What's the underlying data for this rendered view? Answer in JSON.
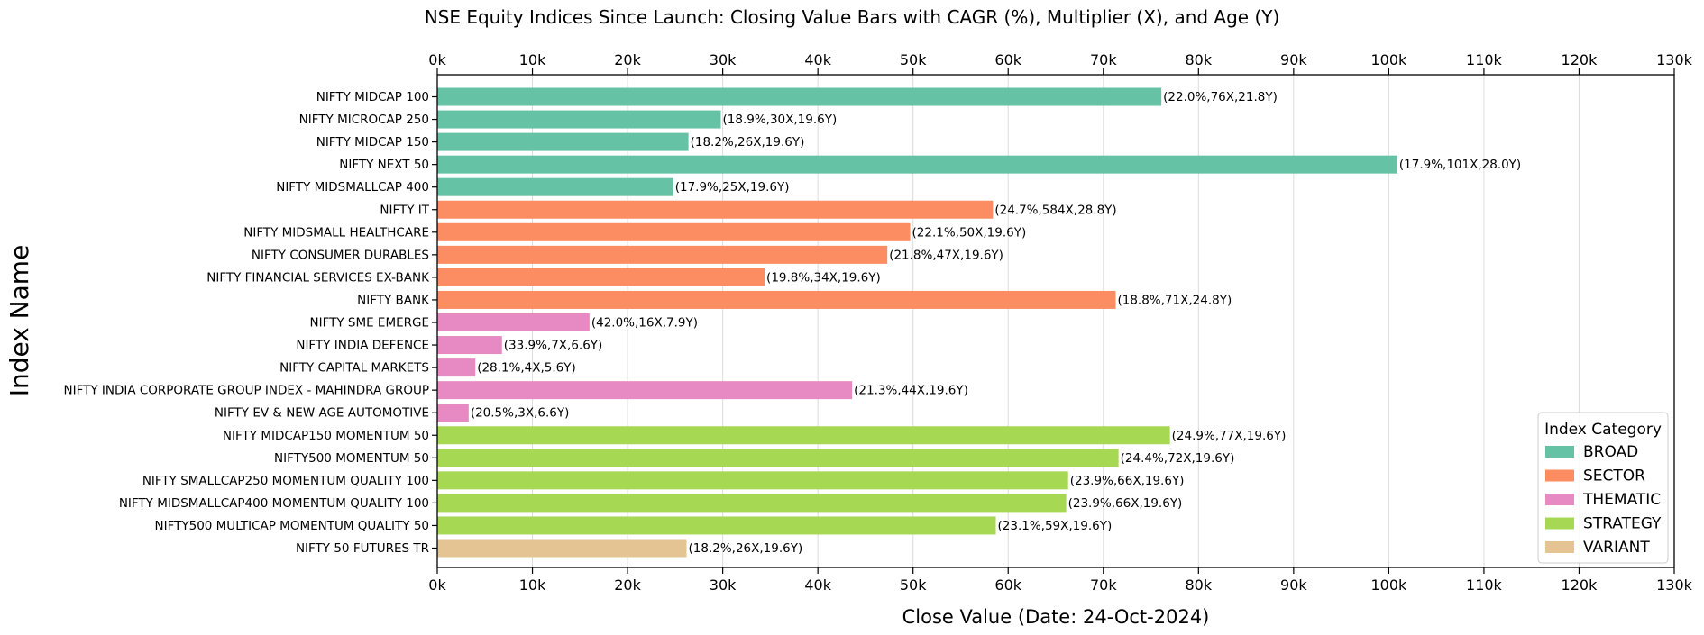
{
  "chart_data": {
    "type": "bar",
    "orientation": "horizontal",
    "title": "NSE Equity Indices Since Launch: Closing Value Bars with CAGR (%), Multiplier (X), and Age (Y)",
    "xlabel": "Close Value (Date: 24-Oct-2024)",
    "ylabel": "Index Name",
    "xlim": [
      0,
      130000
    ],
    "xticks": [
      0,
      10000,
      20000,
      30000,
      40000,
      50000,
      60000,
      70000,
      80000,
      90000,
      100000,
      110000,
      120000,
      130000
    ],
    "xtick_labels": [
      "0k",
      "10k",
      "20k",
      "30k",
      "40k",
      "50k",
      "60k",
      "70k",
      "80k",
      "90k",
      "100k",
      "110k",
      "120k",
      "130k"
    ],
    "grid": "vertical",
    "legend": {
      "title": "Index Category",
      "placement": "lower-right",
      "entries": [
        {
          "name": "BROAD",
          "color": "#66c2a5"
        },
        {
          "name": "SECTOR",
          "color": "#fc8d62"
        },
        {
          "name": "THEMATIC",
          "color": "#e78ac3"
        },
        {
          "name": "STRATEGY",
          "color": "#a6d854"
        },
        {
          "name": "VARIANT",
          "color": "#e5c494"
        }
      ]
    },
    "bars": [
      {
        "name": "NIFTY MIDCAP 100",
        "category": "BROAD",
        "value": 76100,
        "label": "(22.0%,76X,21.8Y)"
      },
      {
        "name": "NIFTY MICROCAP 250",
        "category": "BROAD",
        "value": 29800,
        "label": "(18.9%,30X,19.6Y)"
      },
      {
        "name": "NIFTY MIDCAP 150",
        "category": "BROAD",
        "value": 26400,
        "label": "(18.2%,26X,19.6Y)"
      },
      {
        "name": "NIFTY NEXT 50",
        "category": "BROAD",
        "value": 100900,
        "label": "(17.9%,101X,28.0Y)"
      },
      {
        "name": "NIFTY MIDSMALLCAP 400",
        "category": "BROAD",
        "value": 24800,
        "label": "(17.9%,25X,19.6Y)"
      },
      {
        "name": "NIFTY IT",
        "category": "SECTOR",
        "value": 58400,
        "label": "(24.7%,584X,28.8Y)"
      },
      {
        "name": "NIFTY MIDSMALL HEALTHCARE",
        "category": "SECTOR",
        "value": 49700,
        "label": "(22.1%,50X,19.6Y)"
      },
      {
        "name": "NIFTY CONSUMER DURABLES",
        "category": "SECTOR",
        "value": 47300,
        "label": "(21.8%,47X,19.6Y)"
      },
      {
        "name": "NIFTY FINANCIAL SERVICES EX-BANK",
        "category": "SECTOR",
        "value": 34400,
        "label": "(19.8%,34X,19.6Y)"
      },
      {
        "name": "NIFTY BANK",
        "category": "SECTOR",
        "value": 71300,
        "label": "(18.8%,71X,24.8Y)"
      },
      {
        "name": "NIFTY SME EMERGE",
        "category": "THEMATIC",
        "value": 16000,
        "label": "(42.0%,16X,7.9Y)"
      },
      {
        "name": "NIFTY INDIA DEFENCE",
        "category": "THEMATIC",
        "value": 6800,
        "label": "(33.9%,7X,6.6Y)"
      },
      {
        "name": "NIFTY CAPITAL MARKETS",
        "category": "THEMATIC",
        "value": 4000,
        "label": "(28.1%,4X,5.6Y)"
      },
      {
        "name": "NIFTY INDIA CORPORATE GROUP INDEX - MAHINDRA GROUP",
        "category": "THEMATIC",
        "value": 43600,
        "label": "(21.3%,44X,19.6Y)"
      },
      {
        "name": "NIFTY EV & NEW AGE AUTOMOTIVE",
        "category": "THEMATIC",
        "value": 3300,
        "label": "(20.5%,3X,6.6Y)"
      },
      {
        "name": "NIFTY MIDCAP150 MOMENTUM 50",
        "category": "STRATEGY",
        "value": 77000,
        "label": "(24.9%,77X,19.6Y)"
      },
      {
        "name": "NIFTY500 MOMENTUM 50",
        "category": "STRATEGY",
        "value": 71600,
        "label": "(24.4%,72X,19.6Y)"
      },
      {
        "name": "NIFTY SMALLCAP250 MOMENTUM QUALITY 100",
        "category": "STRATEGY",
        "value": 66300,
        "label": "(23.9%,66X,19.6Y)"
      },
      {
        "name": "NIFTY MIDSMALLCAP400 MOMENTUM QUALITY 100",
        "category": "STRATEGY",
        "value": 66100,
        "label": "(23.9%,66X,19.6Y)"
      },
      {
        "name": "NIFTY500 MULTICAP MOMENTUM QUALITY 50",
        "category": "STRATEGY",
        "value": 58700,
        "label": "(23.1%,59X,19.6Y)"
      },
      {
        "name": "NIFTY 50 FUTURES TR",
        "category": "VARIANT",
        "value": 26200,
        "label": "(18.2%,26X,19.6Y)"
      }
    ]
  }
}
